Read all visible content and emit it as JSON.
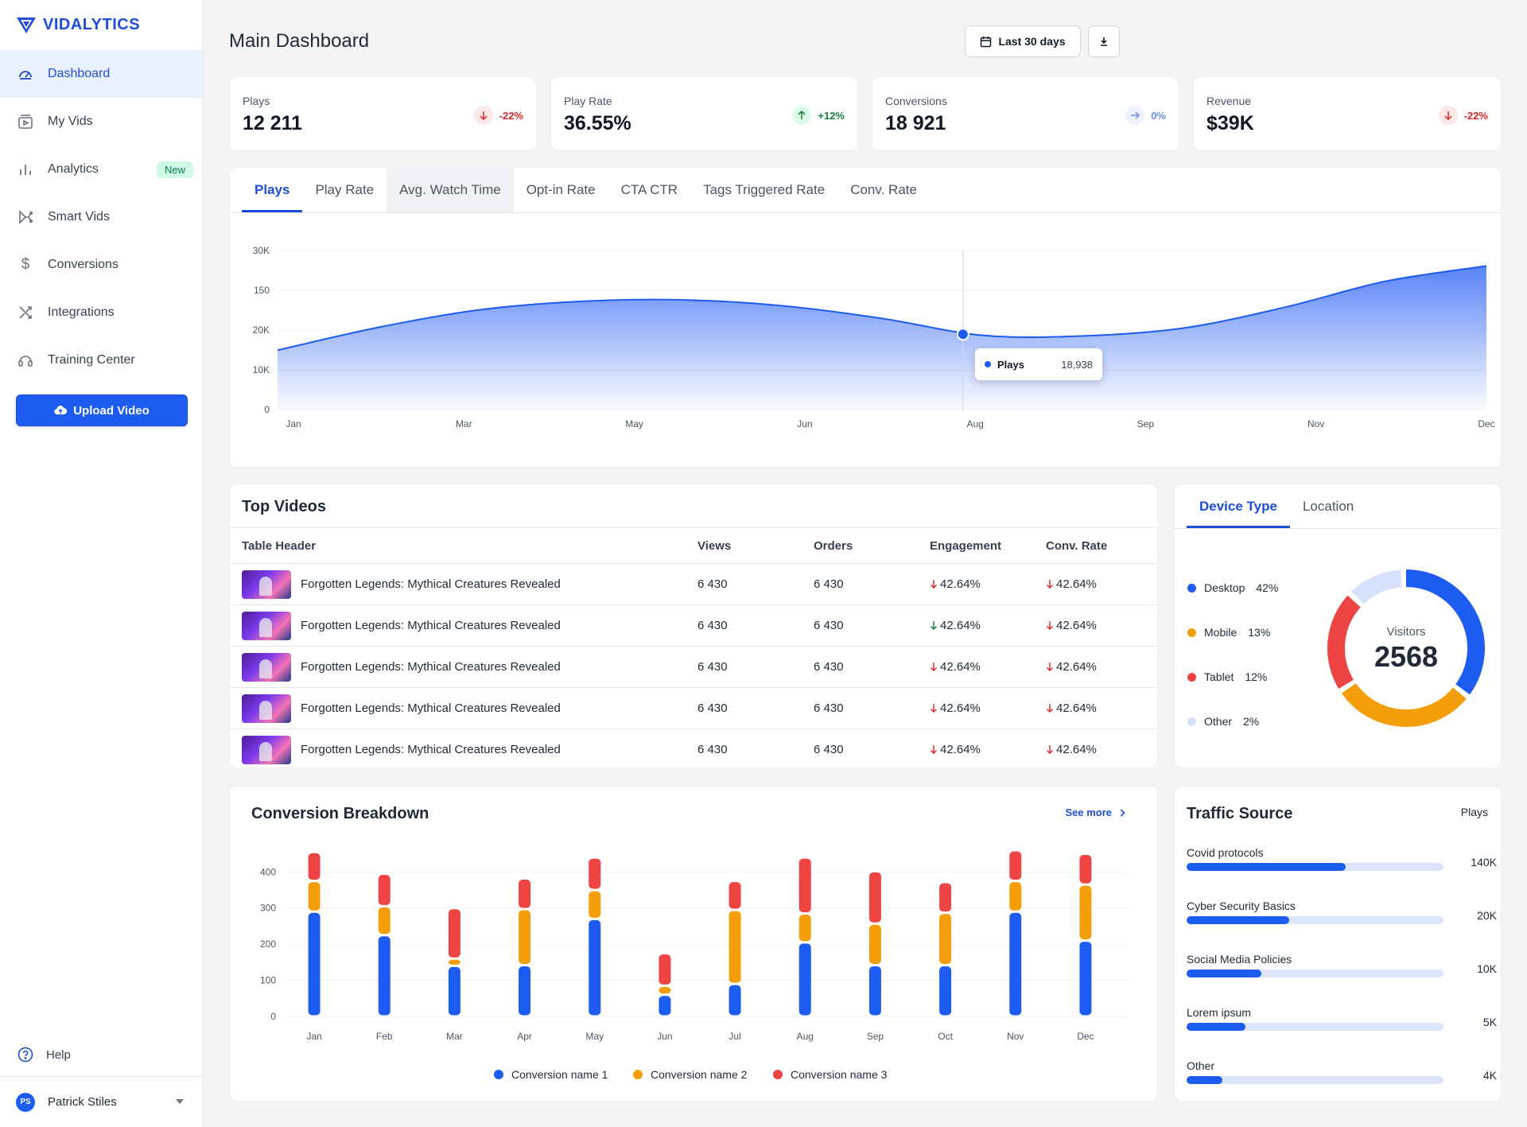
{
  "brand": {
    "name": "VIDALYTICS"
  },
  "sidebar": {
    "items": [
      {
        "label": "Dashboard",
        "icon": "dashboard-icon"
      },
      {
        "label": "My Vids",
        "icon": "video-icon"
      },
      {
        "label": "Analytics",
        "icon": "bar-chart-icon",
        "badge": "New"
      },
      {
        "label": "Smart Vids",
        "icon": "branch-icon"
      },
      {
        "label": "Conversions",
        "icon": "dollar-icon"
      },
      {
        "label": "Integrations",
        "icon": "shuffle-icon"
      },
      {
        "label": "Training Center",
        "icon": "headset-icon"
      }
    ],
    "upload_label": "Upload Video",
    "help_label": "Help",
    "user_name": "Patrick Stiles",
    "user_initials": "PS"
  },
  "header": {
    "title": "Main Dashboard",
    "date_range": "Last 30 days"
  },
  "stats": [
    {
      "label": "Plays",
      "value": "12 211",
      "change": "-22%",
      "trend": "down"
    },
    {
      "label": "Play Rate",
      "value": "36.55%",
      "change": "+12%",
      "trend": "up"
    },
    {
      "label": "Conversions",
      "value": "18 921",
      "change": "0%",
      "trend": "flat"
    },
    {
      "label": "Revenue",
      "value": "$39K",
      "change": "-22%",
      "trend": "down"
    }
  ],
  "main_chart": {
    "tabs": [
      "Plays",
      "Play Rate",
      "Avg. Watch Time",
      "Opt-in Rate",
      "CTA CTR",
      "Tags Triggered Rate",
      "Conv. Rate"
    ],
    "tooltip": {
      "label": "Plays",
      "value": "18,938"
    }
  },
  "top_videos": {
    "title": "Top Videos",
    "headers": [
      "Table Header",
      "Views",
      "Orders",
      "Engagement",
      "Conv. Rate"
    ],
    "rows": [
      {
        "title": "Forgotten Legends: Mythical Creatures Revealed",
        "views": "6 430",
        "orders": "6 430",
        "engagement": "42.64%",
        "eng_trend": "neg",
        "conv": "42.64%"
      },
      {
        "title": "Forgotten Legends: Mythical Creatures Revealed",
        "views": "6 430",
        "orders": "6 430",
        "engagement": "42.64%",
        "eng_trend": "pos",
        "conv": "42.64%"
      },
      {
        "title": "Forgotten Legends: Mythical Creatures Revealed",
        "views": "6 430",
        "orders": "6 430",
        "engagement": "42.64%",
        "eng_trend": "neg",
        "conv": "42.64%"
      },
      {
        "title": "Forgotten Legends: Mythical Creatures Revealed",
        "views": "6 430",
        "orders": "6 430",
        "engagement": "42.64%",
        "eng_trend": "neg",
        "conv": "42.64%"
      },
      {
        "title": "Forgotten Legends: Mythical Creatures Revealed",
        "views": "6 430",
        "orders": "6 430",
        "engagement": "42.64%",
        "eng_trend": "neg",
        "conv": "42.64%"
      }
    ]
  },
  "device": {
    "tabs": [
      "Device Type",
      "Location"
    ],
    "center_label": "Visitors",
    "center_value": "2568",
    "items": [
      {
        "name": "Desktop",
        "pct": "42%",
        "color": "#1d5cf0"
      },
      {
        "name": "Mobile",
        "pct": "13%",
        "color": "#f59e0b"
      },
      {
        "name": "Tablet",
        "pct": "12%",
        "color": "#ef4444"
      },
      {
        "name": "Other",
        "pct": "2%",
        "color": "#d6e2fb"
      }
    ]
  },
  "conversion": {
    "title": "Conversion Breakdown",
    "see_more": "See more"
  },
  "traffic": {
    "title": "Traffic Source",
    "column": "Plays",
    "items": [
      {
        "label": "Covid protocols",
        "value": "140K",
        "fraction": 0.62
      },
      {
        "label": "Cyber Security Basics",
        "value": "20K",
        "fraction": 0.4
      },
      {
        "label": "Social Media Policies",
        "value": "10K",
        "fraction": 0.29
      },
      {
        "label": "Lorem ipsum",
        "value": "5K",
        "fraction": 0.23
      },
      {
        "label": "Other",
        "value": "4K",
        "fraction": 0.14
      }
    ]
  },
  "chart_data": [
    {
      "type": "area",
      "series": [
        {
          "name": "Plays",
          "values": [
            11200,
            15500,
            18800,
            20400,
            20700,
            19600,
            17200,
            14000,
            13900,
            15400,
            19300,
            24200,
            27100
          ]
        }
      ],
      "x_tick_labels": [
        "Jan",
        "Mar",
        "May",
        "Jun",
        "Aug",
        "Sep",
        "Nov",
        "Dec"
      ],
      "y_tick_labels": [
        "0",
        "10K",
        "20K",
        "150",
        "30K"
      ],
      "tooltip_point": {
        "x": "Aug",
        "value": 18938
      }
    },
    {
      "type": "bar",
      "categories": [
        "Jan",
        "Feb",
        "Mar",
        "Apr",
        "May",
        "Jun",
        "Jul",
        "Aug",
        "Sep",
        "Oct",
        "Nov",
        "Dec"
      ],
      "series": [
        {
          "name": "Conversion name 1",
          "values": [
            290,
            225,
            140,
            142,
            270,
            60,
            90,
            205,
            142,
            142,
            290,
            210
          ],
          "color": "#1d5cf0"
        },
        {
          "name": "Conversion name 2",
          "values": [
            85,
            80,
            20,
            155,
            80,
            25,
            205,
            80,
            115,
            145,
            85,
            155
          ],
          "color": "#f59e0b"
        },
        {
          "name": "Conversion name 3",
          "values": [
            80,
            90,
            140,
            85,
            90,
            90,
            80,
            155,
            145,
            85,
            85,
            85
          ],
          "color": "#ef4444"
        }
      ],
      "y_ticks": [
        0,
        100,
        200,
        300,
        400
      ],
      "ylim": [
        0,
        460
      ]
    }
  ]
}
